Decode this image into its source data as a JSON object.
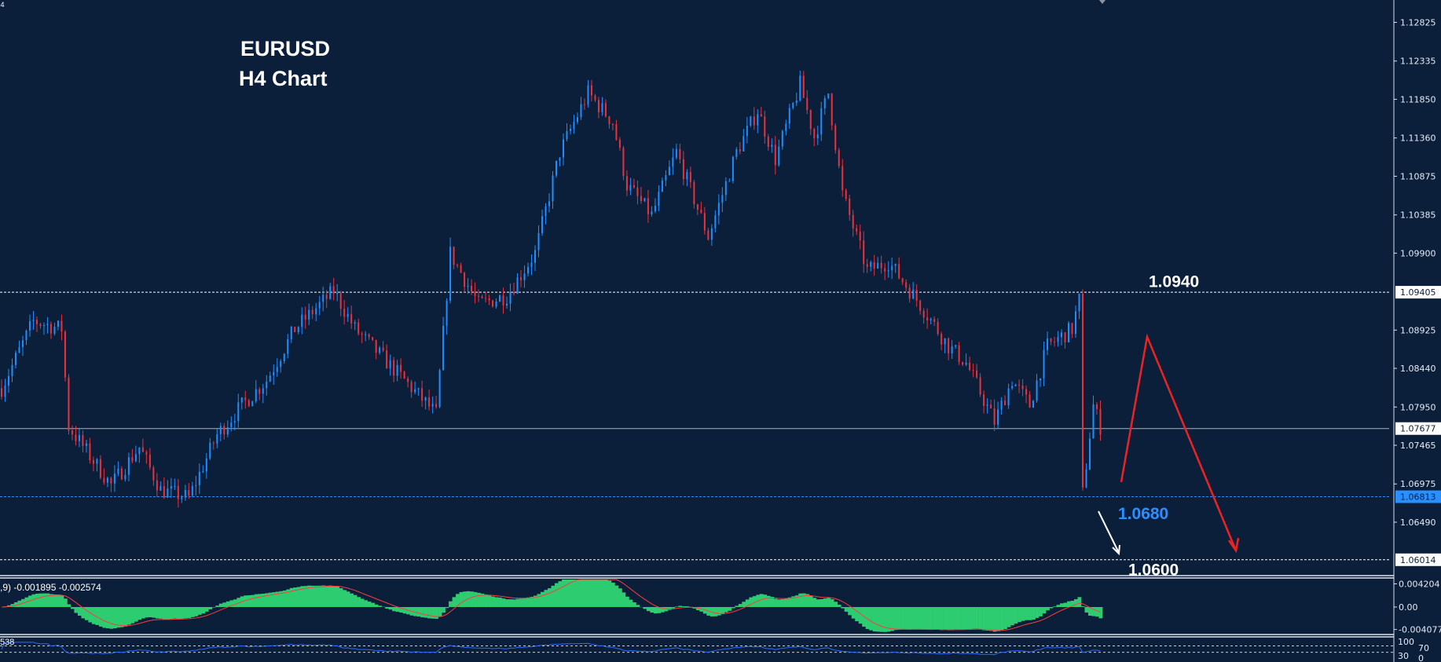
{
  "header": {
    "timeframe_tag": "H4"
  },
  "colors": {
    "background": "#0b1f3b",
    "bull": "#1e8fff",
    "bear": "#e8323c",
    "macd_hist": "#2ecc71",
    "macd_signal": "#ff3b3b",
    "rsi_line": "#2d6bff",
    "projection": "#ee2222",
    "support_label": "#2a8fff"
  },
  "chart_data": {
    "type": "candlestick",
    "title": "EURUSD",
    "subtitle": "H4 Chart",
    "ylim": [
      1.056,
      1.1311
    ],
    "y_ticks": [
      "1.12825",
      "1.12335",
      "1.11850",
      "1.11360",
      "1.10875",
      "1.10385",
      "1.09900",
      "1.08925",
      "1.08440",
      "1.07950",
      "1.07465",
      "1.06975",
      "1.06490"
    ],
    "price_path": [
      [
        0,
        1.0819
      ],
      [
        9,
        1.0904
      ],
      [
        17,
        1.0894
      ],
      [
        19,
        1.077
      ],
      [
        31,
        1.0696
      ],
      [
        39,
        1.0744
      ],
      [
        45,
        1.069
      ],
      [
        53,
        1.068
      ],
      [
        61,
        1.076
      ],
      [
        68,
        1.0797
      ],
      [
        75,
        1.0829
      ],
      [
        83,
        1.0894
      ],
      [
        94,
        1.0942
      ],
      [
        100,
        1.0894
      ],
      [
        114,
        1.0829
      ],
      [
        123,
        1.0786
      ],
      [
        127,
        1.099
      ],
      [
        135,
        1.0925
      ],
      [
        143,
        1.0936
      ],
      [
        151,
        1.099
      ],
      [
        158,
        1.1118
      ],
      [
        166,
        1.1193
      ],
      [
        173,
        1.1156
      ],
      [
        177,
        1.1076
      ],
      [
        184,
        1.1038
      ],
      [
        191,
        1.1118
      ],
      [
        200,
        1.1011
      ],
      [
        208,
        1.1118
      ],
      [
        214,
        1.1171
      ],
      [
        219,
        1.1109
      ],
      [
        226,
        1.1204
      ],
      [
        230,
        1.1137
      ],
      [
        234,
        1.1193
      ],
      [
        238,
        1.1065
      ],
      [
        245,
        1.0968
      ],
      [
        251,
        1.0979
      ],
      [
        260,
        1.0925
      ],
      [
        268,
        1.0872
      ],
      [
        273,
        1.0851
      ],
      [
        281,
        1.0776
      ],
      [
        286,
        1.0829
      ],
      [
        291,
        1.0797
      ],
      [
        296,
        1.0872
      ],
      [
        303,
        1.0894
      ],
      [
        305,
        1.0931
      ],
      [
        306,
        1.0685
      ],
      [
        309,
        1.0797
      ],
      [
        311,
        1.077
      ]
    ],
    "levels": [
      {
        "price": 1.09405,
        "label": "1.09405",
        "style": "dashed",
        "color": "#ffffff"
      },
      {
        "price": 1.07677,
        "label": "1.07677",
        "style": "solid",
        "color": "#aab4c0"
      },
      {
        "price": 1.06813,
        "label": "1.06813",
        "style": "dashed",
        "color": "#2a8fff"
      },
      {
        "price": 1.06014,
        "label": "1.06014",
        "style": "dashed",
        "color": "#ffffff"
      }
    ],
    "annotations": [
      {
        "text": "1.0940",
        "price": 1.0955,
        "color": "#ffffff"
      },
      {
        "text": "1.0680",
        "price": 1.0661,
        "color": "#2a8fff"
      },
      {
        "text": "1.0600",
        "price": 1.059,
        "color": "#ffffff"
      }
    ],
    "projection_path": [
      [
        1.07
      ],
      [
        1.0884
      ],
      [
        1.0613
      ]
    ],
    "macd": {
      "label": ",9) -0.001895 -0.002574",
      "y_ticks": [
        "0.004204",
        "0.00",
        "-0.004077"
      ],
      "ylim": [
        -0.004077,
        0.004204
      ]
    },
    "rsi": {
      "label": "538",
      "y_ticks": [
        "100",
        "70",
        "30",
        "0"
      ],
      "levels": [
        70,
        30
      ]
    }
  }
}
